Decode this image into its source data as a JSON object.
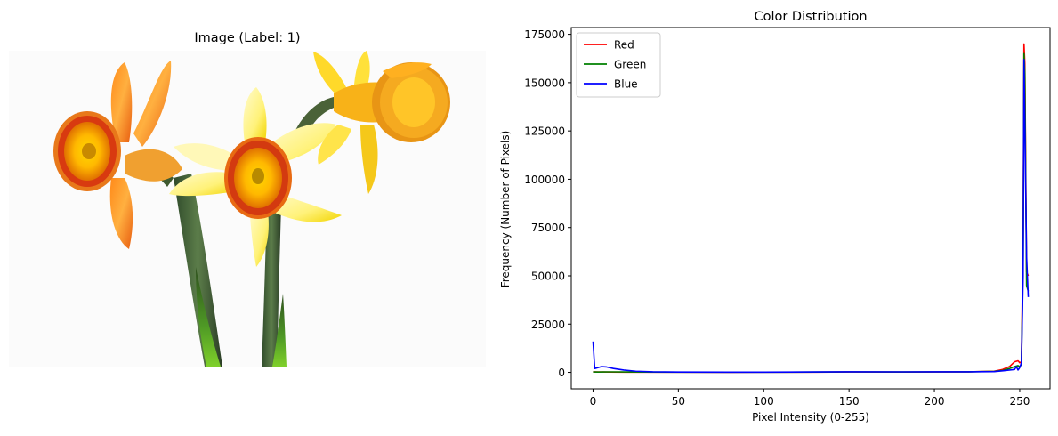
{
  "image_panel": {
    "title": "Image (Label: 1)"
  },
  "chart_data": {
    "type": "line",
    "title": "Color Distribution",
    "xlabel": "Pixel Intensity (0-255)",
    "ylabel": "Frequency (Number of Pixels)",
    "xlim": [
      -12.75,
      267.75
    ],
    "ylim": [
      -8500,
      178500
    ],
    "xticks": [
      0,
      50,
      100,
      150,
      200,
      250
    ],
    "yticks": [
      0,
      25000,
      50000,
      75000,
      100000,
      125000,
      150000,
      175000
    ],
    "xtick_labels": [
      "0",
      "50",
      "100",
      "150",
      "200",
      "250"
    ],
    "ytick_labels": [
      "0",
      "25000",
      "50000",
      "75000",
      "100000",
      "125000",
      "150000",
      "175000"
    ],
    "grid": false,
    "legend_position": "top-left",
    "series": [
      {
        "name": "Red",
        "color": "#ff0000",
        "points": [
          [
            0,
            300
          ],
          [
            3,
            200
          ],
          [
            6,
            200
          ],
          [
            10,
            150
          ],
          [
            20,
            120
          ],
          [
            30,
            100
          ],
          [
            50,
            80
          ],
          [
            80,
            60
          ],
          [
            100,
            80
          ],
          [
            130,
            120
          ],
          [
            150,
            200
          ],
          [
            180,
            180
          ],
          [
            200,
            220
          ],
          [
            220,
            300
          ],
          [
            235,
            600
          ],
          [
            240,
            1500
          ],
          [
            244,
            3000
          ],
          [
            247,
            5500
          ],
          [
            249,
            6000
          ],
          [
            250,
            5000
          ],
          [
            251,
            5500
          ],
          [
            252,
            70000
          ],
          [
            252.5,
            170000
          ],
          [
            253,
            160000
          ],
          [
            254,
            52000
          ],
          [
            255,
            50000
          ]
        ]
      },
      {
        "name": "Green",
        "color": "#008000",
        "points": [
          [
            0,
            200
          ],
          [
            3,
            150
          ],
          [
            6,
            200
          ],
          [
            10,
            250
          ],
          [
            20,
            200
          ],
          [
            30,
            150
          ],
          [
            50,
            100
          ],
          [
            80,
            80
          ],
          [
            100,
            100
          ],
          [
            130,
            150
          ],
          [
            150,
            250
          ],
          [
            180,
            200
          ],
          [
            200,
            250
          ],
          [
            220,
            300
          ],
          [
            235,
            500
          ],
          [
            240,
            1000
          ],
          [
            244,
            2000
          ],
          [
            247,
            3000
          ],
          [
            249,
            3500
          ],
          [
            250,
            3000
          ],
          [
            251,
            4000
          ],
          [
            252,
            60000
          ],
          [
            252.5,
            165000
          ],
          [
            253,
            155000
          ],
          [
            254,
            45000
          ],
          [
            255,
            42000
          ]
        ]
      },
      {
        "name": "Blue",
        "color": "#0000ff",
        "points": [
          [
            0,
            16000
          ],
          [
            1,
            2000
          ],
          [
            3,
            2500
          ],
          [
            5,
            3000
          ],
          [
            8,
            2800
          ],
          [
            12,
            2000
          ],
          [
            18,
            1200
          ],
          [
            25,
            600
          ],
          [
            35,
            300
          ],
          [
            50,
            150
          ],
          [
            80,
            100
          ],
          [
            100,
            120
          ],
          [
            130,
            200
          ],
          [
            150,
            300
          ],
          [
            180,
            250
          ],
          [
            200,
            280
          ],
          [
            220,
            300
          ],
          [
            235,
            400
          ],
          [
            240,
            800
          ],
          [
            244,
            1200
          ],
          [
            247,
            1500
          ],
          [
            248,
            3000
          ],
          [
            249,
            1200
          ],
          [
            250,
            2500
          ],
          [
            251,
            5000
          ],
          [
            252,
            50000
          ],
          [
            252.5,
            162000
          ],
          [
            253,
            130000
          ],
          [
            254,
            60000
          ],
          [
            255,
            39000
          ]
        ]
      }
    ]
  }
}
